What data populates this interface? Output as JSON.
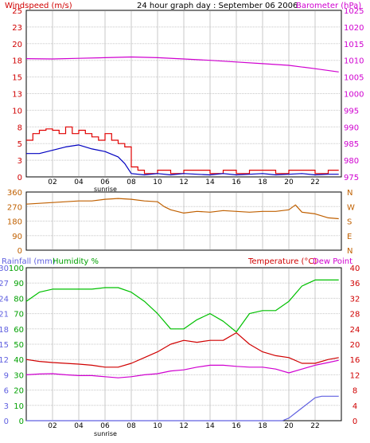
{
  "panel1": {
    "title_left": "Windspeed (m/s)",
    "title_center": "24 hour graph day : September 06 2006",
    "title_right": "Barometer (hPa)",
    "left_ticks": [
      "0",
      "3",
      "5",
      "8",
      "10",
      "13",
      "15",
      "18",
      "20",
      "23",
      "25"
    ],
    "right_ticks": [
      "975",
      "980",
      "985",
      "990",
      "995",
      "1000",
      "1005",
      "1010",
      "1015",
      "1020",
      "1025"
    ],
    "x_ticks": [
      "02",
      "04",
      "06",
      "08",
      "10",
      "12",
      "14",
      "16",
      "18",
      "20",
      "22"
    ],
    "sunrise_label": "sunrise"
  },
  "panel2": {
    "left_ticks": [
      "0",
      "90",
      "180",
      "270",
      "360"
    ],
    "right_ticks": [
      "N",
      "E",
      "S",
      "W",
      "N"
    ]
  },
  "panel3": {
    "title_rain": "Rainfall (mm)",
    "title_humidity": "Humidity %",
    "title_temperature": "Temperature (°C)",
    "title_dew": "Dew Point",
    "rain_ticks": [
      "0",
      "3",
      "6",
      "9",
      "12",
      "15",
      "18",
      "21",
      "24",
      "27",
      "30"
    ],
    "humidity_ticks": [
      "0",
      "10",
      "20",
      "30",
      "40",
      "50",
      "60",
      "70",
      "80",
      "90",
      "100"
    ],
    "temp_ticks": [
      "0",
      "4",
      "8",
      "12",
      "16",
      "20",
      "24",
      "28",
      "32",
      "36",
      "40"
    ],
    "x_ticks": [
      "02",
      "04",
      "06",
      "08",
      "10",
      "12",
      "14",
      "16",
      "18",
      "20",
      "22"
    ],
    "sunrise_label": "sunrise"
  },
  "colors": {
    "wind_gust": "#e00000",
    "wind_avg": "#0000c0",
    "barometer": "#d000d0",
    "direction": "#c06000",
    "rain": "#6060e0",
    "humidity": "#00c000",
    "temperature": "#d00000",
    "dewpoint": "#d000d0",
    "grid": "#c8c8c8"
  },
  "chart_data": [
    {
      "type": "line",
      "title": "24 hour graph day : September 06 2006",
      "x_unit": "hour",
      "xlim": [
        0,
        24
      ],
      "series": [
        {
          "name": "Windspeed (m/s)",
          "axis": "left",
          "ylim": [
            0,
            25
          ],
          "x": [
            0,
            0.5,
            1,
            1.5,
            2,
            2.5,
            3,
            3.5,
            4,
            4.5,
            5,
            5.5,
            6,
            6.5,
            7,
            7.5,
            8,
            8.5,
            9,
            10,
            11,
            12,
            13,
            14,
            15,
            16,
            17,
            18,
            19,
            20,
            21,
            22,
            23,
            23.8
          ],
          "values": [
            5.5,
            6.5,
            7,
            7.2,
            7,
            6.5,
            7.5,
            6.5,
            7,
            6.5,
            6,
            5.5,
            6.5,
            5.5,
            5,
            4.5,
            1.5,
            1,
            0.5,
            1,
            0.5,
            1,
            1,
            0.5,
            1,
            0.5,
            1,
            1,
            0.5,
            1,
            1,
            0.5,
            1,
            1
          ]
        },
        {
          "name": "Average wind",
          "axis": "left",
          "ylim": [
            0,
            25
          ],
          "x": [
            0,
            1,
            2,
            3,
            4,
            5,
            6,
            7,
            7.5,
            8,
            9,
            10,
            11,
            12,
            13,
            14,
            15,
            16,
            17,
            18,
            19,
            20,
            21,
            22,
            23,
            23.8
          ],
          "values": [
            3.5,
            3.5,
            4,
            4.5,
            4.8,
            4.2,
            3.8,
            3,
            2,
            0.5,
            0.3,
            0.5,
            0.3,
            0.5,
            0.4,
            0.3,
            0.5,
            0.3,
            0.4,
            0.5,
            0.3,
            0.4,
            0.5,
            0.3,
            0.4,
            0.4
          ]
        },
        {
          "name": "Barometer (hPa)",
          "axis": "right",
          "ylim": [
            975,
            1025
          ],
          "x": [
            0,
            2,
            4,
            6,
            8,
            10,
            12,
            14,
            16,
            18,
            20,
            22,
            23.8
          ],
          "values": [
            1010.5,
            1010.4,
            1010.6,
            1010.8,
            1011,
            1010.8,
            1010.4,
            1010,
            1009.5,
            1009,
            1008.5,
            1007.5,
            1006.5
          ]
        }
      ]
    },
    {
      "type": "line",
      "ylabel_right": [
        "N",
        "E",
        "S",
        "W",
        "N"
      ],
      "xlim": [
        0,
        24
      ],
      "series": [
        {
          "name": "Wind direction",
          "ylim": [
            0,
            360
          ],
          "x": [
            0,
            1,
            2,
            3,
            4,
            5,
            6,
            7,
            8,
            9,
            10,
            10.5,
            11,
            12,
            13,
            14,
            15,
            16,
            17,
            18,
            19,
            20,
            20.5,
            21,
            22,
            23,
            23.8
          ],
          "values": [
            285,
            290,
            295,
            300,
            305,
            305,
            315,
            320,
            315,
            305,
            300,
            270,
            250,
            230,
            240,
            235,
            245,
            240,
            235,
            240,
            240,
            250,
            280,
            235,
            225,
            200,
            195
          ]
        }
      ]
    },
    {
      "type": "line",
      "xlim": [
        0,
        24
      ],
      "series": [
        {
          "name": "Rainfall (mm)",
          "axis": "rain",
          "ylim": [
            0,
            30
          ],
          "x": [
            0,
            4,
            8,
            12,
            16,
            19.5,
            20,
            20.5,
            21,
            21.5,
            22,
            22.5,
            23,
            23.8
          ],
          "values": [
            0,
            0,
            0,
            0,
            0,
            0,
            0.5,
            1.5,
            2.5,
            3.5,
            4.5,
            4.8,
            4.8,
            4.8
          ]
        },
        {
          "name": "Humidity %",
          "axis": "humidity",
          "ylim": [
            0,
            100
          ],
          "x": [
            0,
            1,
            2,
            3,
            4,
            5,
            6,
            7,
            8,
            9,
            10,
            11,
            12,
            13,
            14,
            15,
            16,
            17,
            18,
            19,
            20,
            21,
            22,
            23,
            23.8
          ],
          "values": [
            78,
            84,
            86,
            86,
            86,
            86,
            87,
            87,
            84,
            78,
            70,
            60,
            60,
            66,
            70,
            65,
            58,
            70,
            72,
            72,
            78,
            88,
            92,
            92,
            92
          ]
        },
        {
          "name": "Temperature (°C)",
          "axis": "temp",
          "ylim": [
            0,
            40
          ],
          "x": [
            0,
            1,
            2,
            3,
            4,
            5,
            6,
            7,
            8,
            9,
            10,
            11,
            12,
            13,
            14,
            15,
            16,
            17,
            18,
            19,
            20,
            21,
            22,
            23,
            23.8
          ],
          "values": [
            16,
            15.5,
            15.2,
            15,
            14.8,
            14.5,
            14,
            14,
            15,
            16.5,
            18,
            20,
            21,
            20.5,
            21,
            21,
            23,
            20,
            18,
            17,
            16.5,
            15,
            15,
            16,
            16.5
          ]
        },
        {
          "name": "Dew Point",
          "axis": "temp",
          "ylim": [
            0,
            40
          ],
          "x": [
            0,
            1,
            2,
            3,
            4,
            5,
            6,
            7,
            8,
            9,
            10,
            11,
            12,
            13,
            14,
            15,
            16,
            17,
            18,
            19,
            20,
            21,
            22,
            23,
            23.8
          ],
          "values": [
            12,
            12.2,
            12.3,
            12,
            11.8,
            11.8,
            11.5,
            11.2,
            11.5,
            12,
            12.3,
            13,
            13.3,
            14,
            14.5,
            14.5,
            14.2,
            14,
            14,
            13.5,
            12.5,
            13.5,
            14.5,
            15.2,
            15.8
          ]
        }
      ]
    }
  ]
}
